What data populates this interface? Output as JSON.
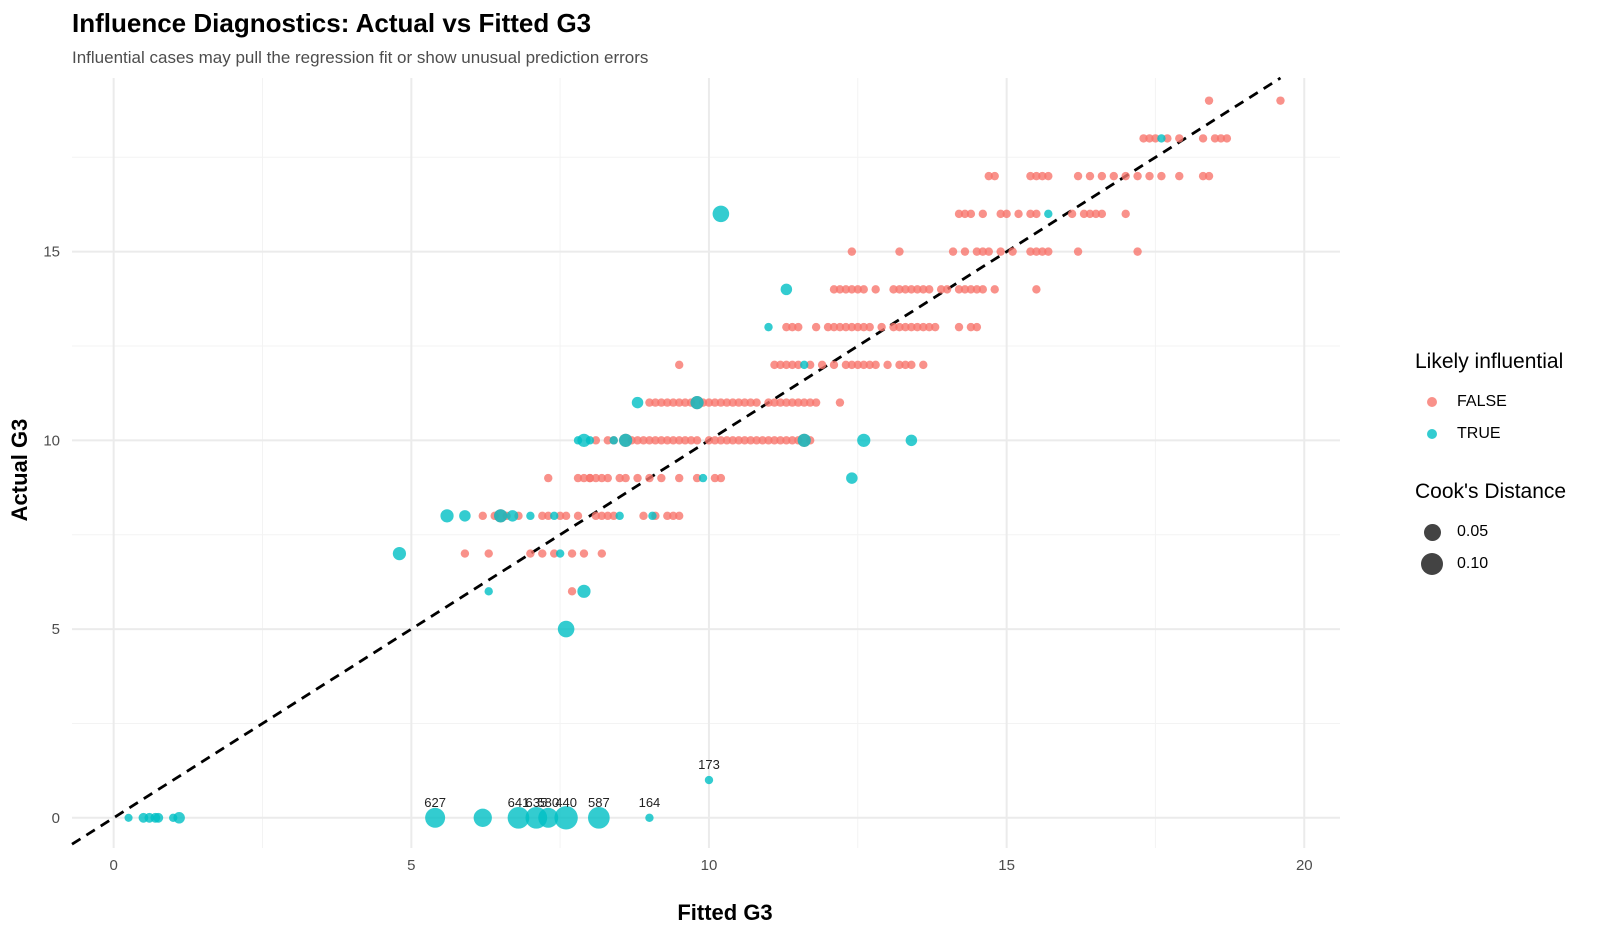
{
  "chart_data": {
    "type": "scatter",
    "title": "Influence Diagnostics: Actual vs Fitted G3",
    "subtitle": "Influential cases may pull the regression fit or show unusual prediction errors",
    "xlabel": "Fitted G3",
    "ylabel": "Actual G3",
    "xlim": [
      -0.7,
      20.6
    ],
    "ylim": [
      -0.8,
      19.6
    ],
    "x_ticks": [
      0,
      5,
      10,
      15,
      20
    ],
    "y_ticks": [
      0,
      5,
      10,
      15
    ],
    "grid": true,
    "reference_line": {
      "slope": 1,
      "intercept": 0,
      "style": "dashed",
      "color": "#000000"
    },
    "colors": {
      "FALSE": "#F8766D",
      "TRUE": "#00BFC4"
    },
    "legend": {
      "position": "right",
      "color_title": "Likely influential",
      "color_entries": [
        "FALSE",
        "TRUE"
      ],
      "size_title": "Cook's Distance",
      "size_entries": [
        "0.05",
        "0.10"
      ]
    },
    "series": [
      {
        "name": "FALSE",
        "points": [
          [
            5.9,
            7
          ],
          [
            6.3,
            7
          ],
          [
            6.2,
            8
          ],
          [
            6.4,
            8
          ],
          [
            6.5,
            8
          ],
          [
            6.6,
            8
          ],
          [
            6.8,
            8
          ],
          [
            7.0,
            7
          ],
          [
            7.2,
            7
          ],
          [
            7.2,
            8
          ],
          [
            7.3,
            8
          ],
          [
            7.4,
            7
          ],
          [
            7.5,
            8
          ],
          [
            7.6,
            8
          ],
          [
            7.7,
            6
          ],
          [
            7.7,
            7
          ],
          [
            7.8,
            8
          ],
          [
            7.9,
            7
          ],
          [
            8.0,
            9
          ],
          [
            8.1,
            8
          ],
          [
            8.2,
            7
          ],
          [
            8.2,
            8
          ],
          [
            8.3,
            8
          ],
          [
            8.4,
            8
          ],
          [
            7.3,
            9
          ],
          [
            7.8,
            9
          ],
          [
            7.9,
            9
          ],
          [
            8.0,
            9
          ],
          [
            8.1,
            9
          ],
          [
            8.2,
            9
          ],
          [
            8.3,
            9
          ],
          [
            8.5,
            9
          ],
          [
            8.6,
            9
          ],
          [
            8.8,
            9
          ],
          [
            9.0,
            9
          ],
          [
            9.2,
            9
          ],
          [
            9.5,
            9
          ],
          [
            9.8,
            9
          ],
          [
            10.1,
            9
          ],
          [
            10.2,
            9
          ],
          [
            8.9,
            8
          ],
          [
            9.1,
            8
          ],
          [
            9.3,
            8
          ],
          [
            9.4,
            8
          ],
          [
            9.5,
            8
          ],
          [
            8.1,
            10
          ],
          [
            8.3,
            10
          ],
          [
            8.4,
            10
          ],
          [
            8.6,
            10
          ],
          [
            8.7,
            10
          ],
          [
            8.8,
            10
          ],
          [
            8.9,
            10
          ],
          [
            9.0,
            10
          ],
          [
            9.1,
            10
          ],
          [
            9.2,
            10
          ],
          [
            9.3,
            10
          ],
          [
            9.4,
            10
          ],
          [
            9.5,
            10
          ],
          [
            9.6,
            10
          ],
          [
            9.7,
            10
          ],
          [
            9.8,
            10
          ],
          [
            10.0,
            10
          ],
          [
            10.1,
            10
          ],
          [
            10.2,
            10
          ],
          [
            10.3,
            10
          ],
          [
            10.4,
            10
          ],
          [
            10.5,
            10
          ],
          [
            10.6,
            10
          ],
          [
            10.7,
            10
          ],
          [
            10.8,
            10
          ],
          [
            10.9,
            10
          ],
          [
            11.0,
            10
          ],
          [
            11.1,
            10
          ],
          [
            11.2,
            10
          ],
          [
            11.3,
            10
          ],
          [
            11.4,
            10
          ],
          [
            11.5,
            10
          ],
          [
            11.6,
            10
          ],
          [
            11.7,
            10
          ],
          [
            9.0,
            11
          ],
          [
            9.1,
            11
          ],
          [
            9.2,
            11
          ],
          [
            9.3,
            11
          ],
          [
            9.4,
            11
          ],
          [
            9.5,
            11
          ],
          [
            9.6,
            11
          ],
          [
            9.7,
            11
          ],
          [
            9.8,
            11
          ],
          [
            9.9,
            11
          ],
          [
            10.0,
            11
          ],
          [
            10.1,
            11
          ],
          [
            10.2,
            11
          ],
          [
            10.3,
            11
          ],
          [
            10.4,
            11
          ],
          [
            10.5,
            11
          ],
          [
            10.6,
            11
          ],
          [
            10.7,
            11
          ],
          [
            10.8,
            11
          ],
          [
            11.0,
            11
          ],
          [
            11.1,
            11
          ],
          [
            11.2,
            11
          ],
          [
            11.3,
            11
          ],
          [
            11.4,
            11
          ],
          [
            11.5,
            11
          ],
          [
            11.6,
            11
          ],
          [
            11.7,
            11
          ],
          [
            11.8,
            11
          ],
          [
            12.2,
            11
          ],
          [
            9.5,
            12
          ],
          [
            11.1,
            12
          ],
          [
            11.2,
            12
          ],
          [
            11.3,
            12
          ],
          [
            11.4,
            12
          ],
          [
            11.5,
            12
          ],
          [
            11.7,
            12
          ],
          [
            11.9,
            12
          ],
          [
            12.1,
            12
          ],
          [
            12.3,
            12
          ],
          [
            12.4,
            12
          ],
          [
            12.5,
            12
          ],
          [
            12.6,
            12
          ],
          [
            12.7,
            12
          ],
          [
            12.8,
            12
          ],
          [
            13.0,
            12
          ],
          [
            13.2,
            12
          ],
          [
            13.3,
            12
          ],
          [
            13.4,
            12
          ],
          [
            13.6,
            12
          ],
          [
            11.3,
            13
          ],
          [
            11.4,
            13
          ],
          [
            11.5,
            13
          ],
          [
            11.8,
            13
          ],
          [
            12.0,
            13
          ],
          [
            12.1,
            13
          ],
          [
            12.2,
            13
          ],
          [
            12.3,
            13
          ],
          [
            12.4,
            13
          ],
          [
            12.5,
            13
          ],
          [
            12.6,
            13
          ],
          [
            12.7,
            13
          ],
          [
            12.9,
            13
          ],
          [
            13.1,
            13
          ],
          [
            13.2,
            13
          ],
          [
            13.3,
            13
          ],
          [
            13.4,
            13
          ],
          [
            13.5,
            13
          ],
          [
            13.6,
            13
          ],
          [
            13.7,
            13
          ],
          [
            13.8,
            13
          ],
          [
            14.2,
            13
          ],
          [
            14.4,
            13
          ],
          [
            14.5,
            13
          ],
          [
            12.1,
            14
          ],
          [
            12.2,
            14
          ],
          [
            12.3,
            14
          ],
          [
            12.4,
            14
          ],
          [
            12.5,
            14
          ],
          [
            12.6,
            14
          ],
          [
            12.8,
            14
          ],
          [
            13.1,
            14
          ],
          [
            13.2,
            14
          ],
          [
            13.3,
            14
          ],
          [
            13.4,
            14
          ],
          [
            13.5,
            14
          ],
          [
            13.6,
            14
          ],
          [
            13.7,
            14
          ],
          [
            13.9,
            14
          ],
          [
            14.0,
            14
          ],
          [
            14.2,
            14
          ],
          [
            14.3,
            14
          ],
          [
            14.4,
            14
          ],
          [
            14.5,
            14
          ],
          [
            14.6,
            14
          ],
          [
            14.8,
            14
          ],
          [
            15.5,
            14
          ],
          [
            12.4,
            15
          ],
          [
            13.2,
            15
          ],
          [
            14.1,
            15
          ],
          [
            14.3,
            15
          ],
          [
            14.5,
            15
          ],
          [
            14.6,
            15
          ],
          [
            14.7,
            15
          ],
          [
            14.9,
            15
          ],
          [
            15.1,
            15
          ],
          [
            15.4,
            15
          ],
          [
            15.5,
            15
          ],
          [
            15.6,
            15
          ],
          [
            15.7,
            15
          ],
          [
            16.2,
            15
          ],
          [
            17.2,
            15
          ],
          [
            14.2,
            16
          ],
          [
            14.3,
            16
          ],
          [
            14.4,
            16
          ],
          [
            14.6,
            16
          ],
          [
            14.9,
            16
          ],
          [
            15.0,
            16
          ],
          [
            15.2,
            16
          ],
          [
            15.4,
            16
          ],
          [
            15.5,
            16
          ],
          [
            16.1,
            16
          ],
          [
            16.3,
            16
          ],
          [
            16.4,
            16
          ],
          [
            16.5,
            16
          ],
          [
            16.6,
            16
          ],
          [
            17.0,
            16
          ],
          [
            14.7,
            17
          ],
          [
            14.8,
            17
          ],
          [
            15.4,
            17
          ],
          [
            15.5,
            17
          ],
          [
            15.6,
            17
          ],
          [
            15.7,
            17
          ],
          [
            16.2,
            17
          ],
          [
            16.4,
            17
          ],
          [
            16.6,
            17
          ],
          [
            16.8,
            17
          ],
          [
            17.0,
            17
          ],
          [
            17.2,
            17
          ],
          [
            17.4,
            17
          ],
          [
            17.6,
            17
          ],
          [
            17.9,
            17
          ],
          [
            18.3,
            17
          ],
          [
            18.4,
            17
          ],
          [
            17.3,
            18
          ],
          [
            17.4,
            18
          ],
          [
            17.5,
            18
          ],
          [
            17.7,
            18
          ],
          [
            17.9,
            18
          ],
          [
            18.3,
            18
          ],
          [
            18.5,
            18
          ],
          [
            18.6,
            18
          ],
          [
            18.7,
            18
          ],
          [
            18.4,
            19
          ],
          [
            19.6,
            19
          ]
        ]
      },
      {
        "name": "TRUE",
        "points": [
          [
            0.25,
            0
          ],
          [
            0.5,
            0
          ],
          [
            0.6,
            0
          ],
          [
            0.7,
            0
          ],
          [
            0.75,
            0
          ],
          [
            1.0,
            0
          ],
          [
            1.1,
            0
          ],
          [
            5.4,
            0
          ],
          [
            6.2,
            0
          ],
          [
            6.8,
            0
          ],
          [
            7.1,
            0
          ],
          [
            7.3,
            0
          ],
          [
            7.6,
            0
          ],
          [
            8.15,
            0
          ],
          [
            9.0,
            0
          ],
          [
            10.0,
            1
          ],
          [
            4.8,
            7
          ],
          [
            5.6,
            8
          ],
          [
            5.9,
            8
          ],
          [
            6.5,
            8
          ],
          [
            6.7,
            8
          ],
          [
            7.0,
            8
          ],
          [
            7.4,
            8
          ],
          [
            7.5,
            7
          ],
          [
            8.5,
            8
          ],
          [
            9.05,
            8
          ],
          [
            6.3,
            6
          ],
          [
            7.9,
            6
          ],
          [
            7.6,
            5
          ],
          [
            7.8,
            10
          ],
          [
            7.9,
            10
          ],
          [
            8.0,
            10
          ],
          [
            8.4,
            10
          ],
          [
            8.6,
            10
          ],
          [
            8.8,
            11
          ],
          [
            9.8,
            11
          ],
          [
            9.9,
            9
          ],
          [
            11.6,
            10
          ],
          [
            12.6,
            10
          ],
          [
            13.4,
            10
          ],
          [
            12.4,
            9
          ],
          [
            11.0,
            13
          ],
          [
            11.3,
            14
          ],
          [
            11.6,
            12
          ],
          [
            10.2,
            16
          ],
          [
            15.7,
            16
          ],
          [
            17.6,
            18
          ]
        ]
      }
    ],
    "labels": [
      {
        "text": "627",
        "x": 5.4,
        "y": 0
      },
      {
        "text": "641",
        "x": 6.8,
        "y": 0
      },
      {
        "text": "635",
        "x": 7.1,
        "y": 0
      },
      {
        "text": "580",
        "x": 7.3,
        "y": 0
      },
      {
        "text": "440",
        "x": 7.6,
        "y": 0
      },
      {
        "text": "587",
        "x": 8.15,
        "y": 0
      },
      {
        "text": "164",
        "x": 9.0,
        "y": 0
      },
      {
        "text": "173",
        "x": 10.0,
        "y": 1
      }
    ],
    "cooks_distance": {
      "0.25,0": 0.01,
      "0.5,0": 0.02,
      "0.6,0": 0.02,
      "0.7,0": 0.02,
      "0.75,0": 0.02,
      "1.0,0": 0.02,
      "1.1,0": 0.03,
      "5.4,0": 0.08,
      "6.2,0": 0.07,
      "6.8,0": 0.09,
      "7.1,0": 0.09,
      "7.3,0": 0.08,
      "7.6,0": 0.1,
      "8.15,0": 0.09,
      "9.0,0": 0.13,
      "10.0,1": 0.08,
      "4.8,7": 0.04,
      "5.6,8": 0.04,
      "5.9,8": 0.03,
      "6.5,8": 0.04,
      "6.7,8": 0.03,
      "7.6,5": 0.06,
      "7.9,6": 0.04,
      "10.2,16": 0.06,
      "12.6,10": 0.04,
      "13.4,10": 0.03,
      "11.3,14": 0.03,
      "11.0,13": 0.03,
      "8.8,11": 0.03,
      "9.8,11": 0.04,
      "7.9,10": 0.04,
      "8.0,10": 0.04,
      "8.6,10": 0.04,
      "11.6,10": 0.04,
      "12.4,9": 0.03
    }
  }
}
